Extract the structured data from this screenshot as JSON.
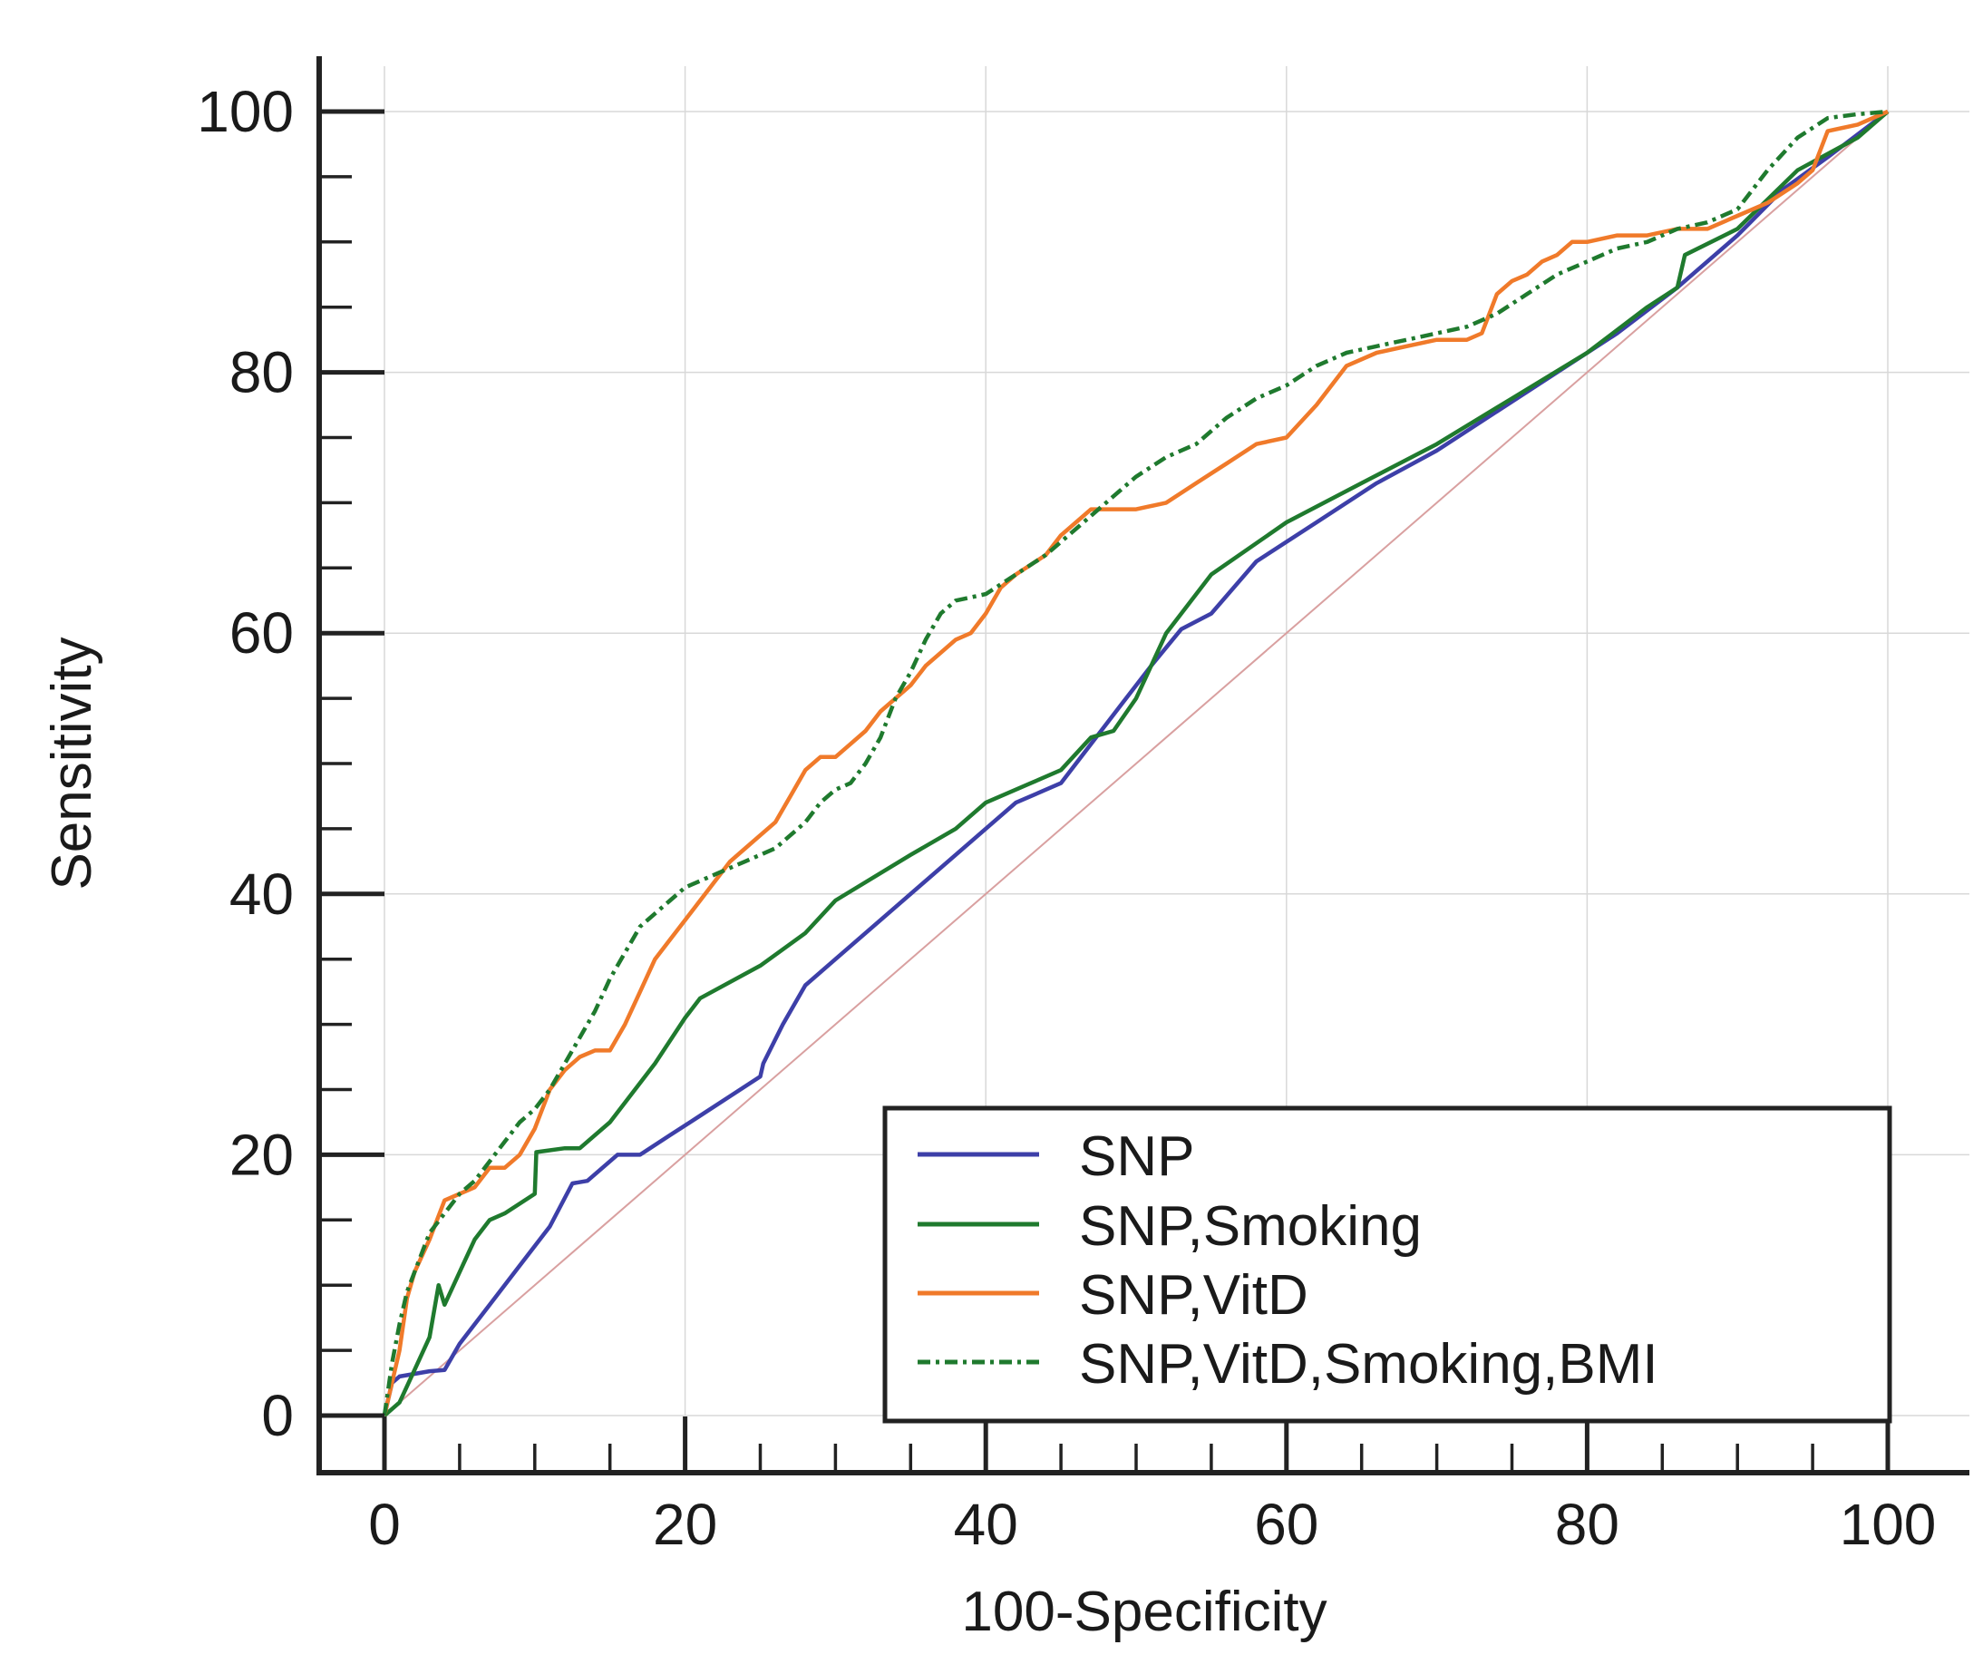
{
  "chart_data": {
    "type": "line",
    "title": "",
    "xlabel": "100-Specificity",
    "ylabel": "Sensitivity",
    "xlim": [
      0,
      100
    ],
    "ylim": [
      0,
      100
    ],
    "xticks": [
      "0",
      "20",
      "40",
      "60",
      "80",
      "100"
    ],
    "yticks": [
      "0",
      "20",
      "40",
      "60",
      "80",
      "100"
    ],
    "grid": true,
    "legend_position": "bottom-right",
    "reference_line": {
      "name": "Reference diagonal",
      "color": "#d9a0a0",
      "x": [
        0,
        100
      ],
      "y": [
        0,
        100
      ]
    },
    "series": [
      {
        "name": "SNP",
        "color": "#3d3fa8",
        "style": "solid",
        "x": [
          0,
          0.5,
          1,
          2,
          3,
          4,
          5,
          7,
          9,
          11,
          12.5,
          13.5,
          14.5,
          15.5,
          17,
          19,
          21,
          23,
          25,
          25.2,
          26.5,
          28,
          30,
          34,
          38,
          42,
          45,
          47,
          49,
          51,
          53,
          55,
          58,
          62,
          66,
          70,
          74,
          78,
          82,
          86,
          90,
          93,
          96,
          100
        ],
        "y": [
          0,
          2.5,
          3,
          3.2,
          3.4,
          3.5,
          5.5,
          8.5,
          11.5,
          14.5,
          17.8,
          18,
          19,
          20,
          20,
          21.5,
          23,
          24.5,
          26,
          27,
          30,
          33,
          35,
          39,
          43,
          47,
          48.5,
          51.5,
          54.5,
          57.5,
          60.3,
          61.5,
          65.5,
          68.5,
          71.5,
          74,
          77,
          80,
          83,
          86.5,
          90.5,
          94,
          96.5,
          100
        ]
      },
      {
        "name": "SNP,Smoking",
        "color": "#1f7a2e",
        "style": "solid",
        "x": [
          0,
          0.5,
          1,
          2,
          3,
          3.6,
          4,
          5,
          6,
          7,
          8,
          10,
          10.1,
          12,
          13,
          15,
          16,
          18,
          20,
          21,
          25,
          28,
          30,
          35,
          38,
          40,
          43,
          45,
          47,
          48.5,
          50,
          52,
          55,
          60,
          65,
          70,
          75,
          80,
          84,
          86,
          86.5,
          90,
          94,
          98,
          100
        ],
        "y": [
          0,
          0.5,
          1,
          3.5,
          6,
          10,
          8.5,
          11,
          13.5,
          15,
          15.5,
          17,
          20.2,
          20.5,
          20.5,
          22.5,
          24,
          27,
          30.5,
          32,
          34.5,
          37,
          39.5,
          43,
          45,
          47,
          48.5,
          49.5,
          52,
          52.5,
          55,
          60,
          64.5,
          68.5,
          71.5,
          74.5,
          78,
          81.5,
          85,
          86.5,
          89,
          91,
          95.5,
          98,
          100
        ]
      },
      {
        "name": "SNP,VitD",
        "color": "#f07a2a",
        "style": "solid",
        "x": [
          0,
          0.5,
          1,
          1.5,
          2,
          3,
          3.5,
          4,
          5,
          6,
          7,
          8,
          9,
          10,
          11,
          12,
          13,
          14,
          15,
          16,
          17,
          18,
          19,
          20,
          21,
          22,
          23,
          24,
          25,
          26,
          27,
          28,
          29,
          30,
          31,
          32,
          33,
          34,
          35,
          36,
          37,
          38,
          39,
          40,
          41,
          42,
          44,
          45,
          46,
          47,
          48,
          50,
          52,
          54,
          56,
          58,
          60,
          62,
          64,
          66,
          68,
          70,
          72,
          73,
          74,
          75,
          76,
          77,
          78,
          79,
          80,
          82,
          84,
          86,
          88,
          90,
          92,
          94,
          95,
          96,
          98,
          100
        ],
        "y": [
          0,
          2.5,
          5,
          9,
          11,
          13.5,
          15,
          16.5,
          17,
          17.5,
          19,
          19,
          20,
          22,
          25,
          26.5,
          27.5,
          28,
          28,
          30,
          32.5,
          35,
          36.5,
          38,
          39.5,
          41,
          42.5,
          43.5,
          44.5,
          45.5,
          47.5,
          49.5,
          50.5,
          50.5,
          51.5,
          52.5,
          54,
          55,
          56,
          57.5,
          58.5,
          59.5,
          60,
          61.5,
          63.5,
          64.5,
          66,
          67.5,
          68.5,
          69.5,
          69.5,
          69.5,
          70,
          71.5,
          73,
          74.5,
          75,
          77.5,
          80.5,
          81.5,
          82,
          82.5,
          82.5,
          83,
          86,
          87,
          87.5,
          88.5,
          89,
          90,
          90,
          90.5,
          90.5,
          91,
          91,
          92,
          93,
          94.5,
          95.5,
          98.5,
          99,
          100
        ]
      },
      {
        "name": "SNP,VitD,Smoking,BMI",
        "color": "#1f7a2e",
        "style": "dash-dot",
        "x": [
          0,
          0.5,
          1,
          1.5,
          2,
          3,
          4,
          5,
          6,
          7,
          8,
          9,
          10,
          11,
          12,
          13,
          14,
          15,
          16,
          17,
          18,
          19,
          20,
          22,
          24,
          26,
          27,
          28,
          29,
          30,
          31,
          32,
          33,
          34,
          35,
          36,
          37,
          38,
          40,
          42,
          44,
          46,
          48,
          50,
          52,
          54,
          56,
          58,
          60,
          62,
          64,
          66,
          68,
          70,
          72,
          74,
          76,
          78,
          80,
          82,
          84,
          86,
          88,
          90,
          92,
          94,
          96,
          98,
          100
        ],
        "y": [
          0,
          4,
          7,
          9.5,
          11,
          14,
          15.5,
          17,
          18,
          19.5,
          21,
          22.5,
          23.5,
          25,
          27,
          29,
          31,
          33.5,
          35.5,
          37.5,
          38.5,
          39.5,
          40.5,
          41.5,
          42.5,
          43.5,
          44.5,
          45.5,
          47,
          48,
          48.5,
          50,
          52,
          55,
          57,
          59.5,
          61.5,
          62.5,
          63,
          64.5,
          66,
          68,
          70,
          72,
          73.5,
          74.5,
          76.5,
          78,
          79,
          80.5,
          81.5,
          82,
          82.5,
          83,
          83.5,
          84.5,
          86,
          87.5,
          88.5,
          89.5,
          90,
          91,
          91.5,
          92.5,
          95.5,
          98,
          99.5,
          99.8,
          100
        ]
      }
    ]
  }
}
